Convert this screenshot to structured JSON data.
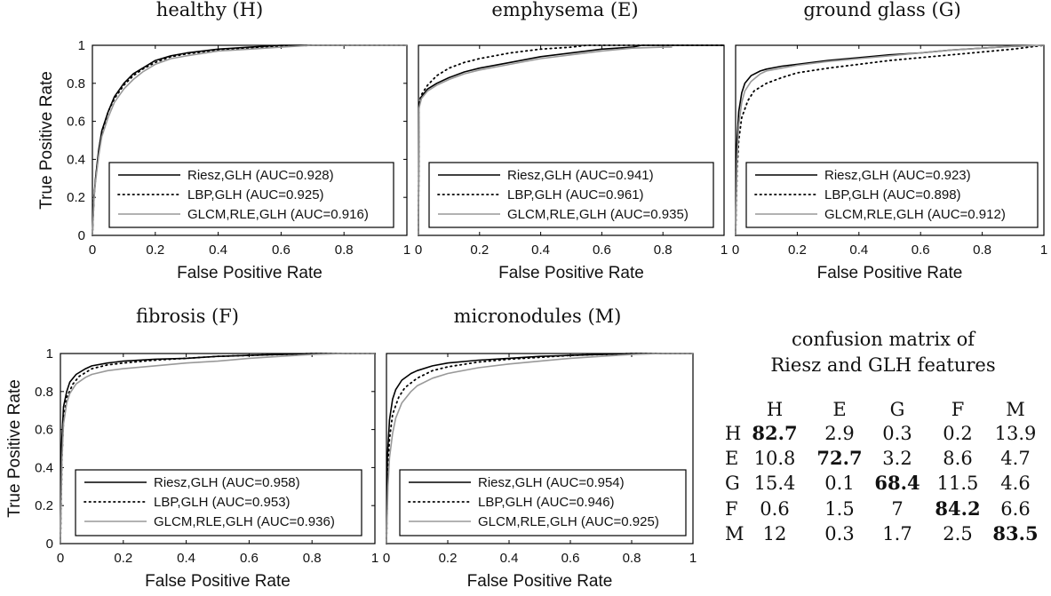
{
  "chart_data": [
    {
      "type": "line",
      "title": "healthy (H)",
      "xlabel": "False Positive Rate",
      "ylabel": "True Positive Rate",
      "xlim": [
        0,
        1
      ],
      "ylim": [
        0,
        1
      ],
      "xticks": [
        "0",
        "0.2",
        "0.4",
        "0.6",
        "0.8",
        "1"
      ],
      "yticks": [
        "0",
        "0.2",
        "0.4",
        "0.6",
        "0.8",
        "1"
      ],
      "legend_position": "bottom-right",
      "series": [
        {
          "name": "Riesz,GLH (AUC=0.928)",
          "style": "solid",
          "color": "#000000",
          "x": [
            0,
            0.005,
            0.01,
            0.02,
            0.03,
            0.05,
            0.07,
            0.1,
            0.13,
            0.16,
            0.2,
            0.25,
            0.3,
            0.4,
            0.5,
            0.6,
            0.65,
            0.7,
            0.8,
            0.9,
            1
          ],
          "y": [
            0,
            0.2,
            0.3,
            0.45,
            0.55,
            0.65,
            0.73,
            0.8,
            0.85,
            0.88,
            0.92,
            0.945,
            0.96,
            0.98,
            0.99,
            1,
            1,
            1,
            1,
            1,
            1
          ]
        },
        {
          "name": "LBP,GLH (AUC=0.925)",
          "style": "dotted",
          "color": "#000000",
          "x": [
            0,
            0.005,
            0.01,
            0.02,
            0.03,
            0.05,
            0.07,
            0.1,
            0.13,
            0.16,
            0.2,
            0.25,
            0.3,
            0.4,
            0.5,
            0.6,
            0.7,
            0.8,
            0.9,
            1
          ],
          "y": [
            0,
            0.2,
            0.29,
            0.44,
            0.54,
            0.65,
            0.72,
            0.79,
            0.84,
            0.875,
            0.91,
            0.94,
            0.955,
            0.975,
            0.985,
            0.995,
            1,
            1,
            1,
            1
          ]
        },
        {
          "name": "GLCM,RLE,GLH (AUC=0.916)",
          "style": "solid",
          "color": "#999999",
          "x": [
            0,
            0.005,
            0.01,
            0.02,
            0.03,
            0.05,
            0.07,
            0.1,
            0.13,
            0.16,
            0.2,
            0.25,
            0.3,
            0.4,
            0.5,
            0.6,
            0.7,
            0.8,
            0.9,
            1
          ],
          "y": [
            0,
            0.19,
            0.28,
            0.42,
            0.52,
            0.62,
            0.7,
            0.77,
            0.82,
            0.86,
            0.9,
            0.93,
            0.945,
            0.97,
            0.98,
            0.99,
            1,
            1,
            1,
            1
          ]
        }
      ]
    },
    {
      "type": "line",
      "title": "emphysema (E)",
      "xlabel": "False Positive Rate",
      "ylabel": "",
      "xlim": [
        0,
        1
      ],
      "ylim": [
        0,
        1
      ],
      "xticks": [
        "0",
        "0.2",
        "0.4",
        "0.6",
        "0.8",
        "1"
      ],
      "yticks": [],
      "legend_position": "bottom-right",
      "series": [
        {
          "name": "Riesz,GLH (AUC=0.941)",
          "style": "solid",
          "color": "#000000",
          "x": [
            0,
            0.002,
            0.01,
            0.03,
            0.06,
            0.1,
            0.15,
            0.2,
            0.3,
            0.4,
            0.5,
            0.6,
            0.7,
            0.73,
            0.75,
            0.8,
            0.9,
            1
          ],
          "y": [
            0,
            0.68,
            0.73,
            0.77,
            0.8,
            0.83,
            0.86,
            0.88,
            0.91,
            0.94,
            0.96,
            0.98,
            0.99,
            1,
            1,
            1,
            1,
            1
          ]
        },
        {
          "name": "LBP,GLH (AUC=0.961)",
          "style": "dotted",
          "color": "#000000",
          "x": [
            0,
            0.002,
            0.01,
            0.03,
            0.06,
            0.1,
            0.15,
            0.2,
            0.3,
            0.4,
            0.5,
            0.55,
            0.6,
            0.8,
            1
          ],
          "y": [
            0,
            0.7,
            0.74,
            0.79,
            0.84,
            0.88,
            0.91,
            0.93,
            0.96,
            0.98,
            0.99,
            1,
            1,
            1,
            1
          ]
        },
        {
          "name": "GLCM,RLE,GLH (AUC=0.935)",
          "style": "solid",
          "color": "#999999",
          "x": [
            0,
            0.002,
            0.01,
            0.03,
            0.06,
            0.1,
            0.15,
            0.2,
            0.3,
            0.4,
            0.5,
            0.6,
            0.7,
            0.8,
            0.83
          ],
          "y": [
            0,
            0.67,
            0.72,
            0.76,
            0.79,
            0.82,
            0.85,
            0.87,
            0.9,
            0.93,
            0.95,
            0.97,
            0.985,
            0.99,
            0.99
          ]
        }
      ]
    },
    {
      "type": "line",
      "title": "ground glass (G)",
      "xlabel": "False Positive Rate",
      "ylabel": "",
      "xlim": [
        0,
        1
      ],
      "ylim": [
        0,
        1
      ],
      "xticks": [
        "0",
        "0.2",
        "0.4",
        "0.6",
        "0.8",
        "1"
      ],
      "yticks": [],
      "legend_position": "bottom-right",
      "series": [
        {
          "name": "Riesz,GLH (AUC=0.923)",
          "style": "solid",
          "color": "#000000",
          "x": [
            0,
            0.003,
            0.01,
            0.02,
            0.03,
            0.05,
            0.08,
            0.1,
            0.15,
            0.2,
            0.3,
            0.4,
            0.5,
            0.6,
            0.7,
            0.8,
            0.9,
            1
          ],
          "y": [
            0,
            0.45,
            0.65,
            0.75,
            0.8,
            0.84,
            0.865,
            0.875,
            0.89,
            0.9,
            0.92,
            0.935,
            0.95,
            0.96,
            0.975,
            0.985,
            0.995,
            1
          ]
        },
        {
          "name": "LBP,GLH (AUC=0.898)",
          "style": "dotted",
          "color": "#000000",
          "x": [
            0,
            0.005,
            0.01,
            0.02,
            0.04,
            0.06,
            0.1,
            0.15,
            0.2,
            0.3,
            0.4,
            0.5,
            0.6,
            0.7,
            0.8,
            0.9,
            1
          ],
          "y": [
            0,
            0.35,
            0.5,
            0.62,
            0.71,
            0.76,
            0.8,
            0.83,
            0.855,
            0.88,
            0.9,
            0.92,
            0.935,
            0.95,
            0.965,
            0.98,
            1
          ]
        },
        {
          "name": "GLCM,RLE,GLH (AUC=0.912)",
          "style": "solid",
          "color": "#999999",
          "x": [
            0,
            0.005,
            0.01,
            0.02,
            0.03,
            0.05,
            0.08,
            0.1,
            0.15,
            0.2,
            0.3,
            0.4,
            0.5,
            0.6,
            0.7,
            0.8,
            0.9,
            1
          ],
          "y": [
            0,
            0.4,
            0.58,
            0.7,
            0.76,
            0.81,
            0.85,
            0.865,
            0.88,
            0.895,
            0.915,
            0.93,
            0.945,
            0.96,
            0.975,
            0.985,
            0.995,
            1
          ]
        }
      ]
    },
    {
      "type": "line",
      "title": "fibrosis (F)",
      "xlabel": "False Positive Rate",
      "ylabel": "True Positive Rate",
      "xlim": [
        0,
        1
      ],
      "ylim": [
        0,
        1
      ],
      "xticks": [
        "0",
        "0.2",
        "0.4",
        "0.6",
        "0.8",
        "1"
      ],
      "yticks": [
        "0",
        "0.2",
        "0.4",
        "0.6",
        "0.8",
        "1"
      ],
      "legend_position": "bottom-right",
      "series": [
        {
          "name": "Riesz,GLH (AUC=0.958)",
          "style": "solid",
          "color": "#000000",
          "x": [
            0,
            0.003,
            0.01,
            0.02,
            0.03,
            0.05,
            0.08,
            0.1,
            0.15,
            0.2,
            0.3,
            0.4,
            0.5,
            0.6,
            0.7,
            0.8,
            0.9,
            1
          ],
          "y": [
            0,
            0.5,
            0.72,
            0.8,
            0.85,
            0.89,
            0.92,
            0.935,
            0.95,
            0.96,
            0.97,
            0.975,
            0.985,
            0.99,
            0.995,
            1,
            1,
            1
          ]
        },
        {
          "name": "LBP,GLH (AUC=0.953)",
          "style": "dotted",
          "color": "#000000",
          "x": [
            0,
            0.005,
            0.01,
            0.02,
            0.04,
            0.06,
            0.1,
            0.15,
            0.2,
            0.3,
            0.4,
            0.5,
            0.6,
            0.7,
            0.8,
            0.9,
            1
          ],
          "y": [
            0,
            0.45,
            0.65,
            0.77,
            0.84,
            0.88,
            0.92,
            0.94,
            0.95,
            0.965,
            0.975,
            0.985,
            0.99,
            0.995,
            1,
            1,
            1
          ]
        },
        {
          "name": "GLCM,RLE,GLH (AUC=0.936)",
          "style": "solid",
          "color": "#999999",
          "x": [
            0,
            0.005,
            0.01,
            0.02,
            0.03,
            0.05,
            0.08,
            0.1,
            0.15,
            0.2,
            0.3,
            0.4,
            0.5,
            0.6,
            0.7,
            0.8,
            0.9,
            1
          ],
          "y": [
            0,
            0.45,
            0.63,
            0.74,
            0.79,
            0.84,
            0.875,
            0.89,
            0.91,
            0.92,
            0.935,
            0.95,
            0.96,
            0.975,
            0.985,
            0.995,
            1,
            1
          ]
        }
      ]
    },
    {
      "type": "line",
      "title": "micronodules (M)",
      "xlabel": "False Positive Rate",
      "ylabel": "",
      "xlim": [
        0,
        1
      ],
      "ylim": [
        0,
        1
      ],
      "xticks": [
        "0",
        "0.2",
        "0.4",
        "0.6",
        "0.8",
        "1"
      ],
      "yticks": [],
      "legend_position": "bottom-right",
      "series": [
        {
          "name": "Riesz,GLH (AUC=0.954)",
          "style": "solid",
          "color": "#000000",
          "x": [
            0,
            0.003,
            0.01,
            0.02,
            0.03,
            0.05,
            0.08,
            0.1,
            0.15,
            0.2,
            0.3,
            0.4,
            0.5,
            0.6,
            0.7,
            0.8,
            0.9,
            1
          ],
          "y": [
            0,
            0.45,
            0.65,
            0.76,
            0.81,
            0.86,
            0.895,
            0.91,
            0.935,
            0.95,
            0.965,
            0.975,
            0.985,
            0.99,
            0.995,
            1,
            1,
            1
          ]
        },
        {
          "name": "LBP,GLH (AUC=0.946)",
          "style": "dotted",
          "color": "#000000",
          "x": [
            0,
            0.005,
            0.01,
            0.02,
            0.04,
            0.06,
            0.1,
            0.15,
            0.2,
            0.3,
            0.4,
            0.5,
            0.6,
            0.7,
            0.8,
            0.9,
            1
          ],
          "y": [
            0,
            0.4,
            0.55,
            0.68,
            0.77,
            0.82,
            0.87,
            0.91,
            0.93,
            0.955,
            0.97,
            0.98,
            0.99,
            0.995,
            1,
            1,
            1
          ]
        },
        {
          "name": "GLCM,RLE,GLH (AUC=0.925)",
          "style": "solid",
          "color": "#999999",
          "x": [
            0,
            0.005,
            0.01,
            0.02,
            0.03,
            0.05,
            0.08,
            0.1,
            0.15,
            0.2,
            0.3,
            0.4,
            0.5,
            0.6,
            0.7,
            0.8,
            0.9,
            1
          ],
          "y": [
            0,
            0.3,
            0.45,
            0.58,
            0.66,
            0.74,
            0.8,
            0.83,
            0.87,
            0.895,
            0.925,
            0.945,
            0.96,
            0.975,
            0.985,
            0.995,
            1,
            1
          ]
        }
      ]
    },
    {
      "type": "table",
      "title": "confusion matrix of\nRiesz and GLH features",
      "title_lines": [
        "confusion matrix of",
        "Riesz and GLH features"
      ],
      "columns": [
        "H",
        "E",
        "G",
        "F",
        "M"
      ],
      "rows": [
        {
          "label": "H",
          "values": [
            "82.7",
            "2.9",
            "0.3",
            "0.2",
            "13.9"
          ]
        },
        {
          "label": "E",
          "values": [
            "10.8",
            "72.7",
            "3.2",
            "8.6",
            "4.7"
          ]
        },
        {
          "label": "G",
          "values": [
            "15.4",
            "0.1",
            "68.4",
            "11.5",
            "4.6"
          ]
        },
        {
          "label": "F",
          "values": [
            "0.6",
            "1.5",
            "7",
            "84.2",
            "6.6"
          ]
        },
        {
          "label": "M",
          "values": [
            "12",
            "0.3",
            "1.7",
            "2.5",
            "83.5"
          ]
        }
      ],
      "bold_diagonal": true
    }
  ]
}
